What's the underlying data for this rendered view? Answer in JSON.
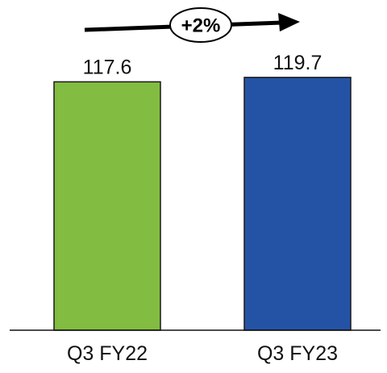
{
  "chart_data": {
    "type": "bar",
    "categories": [
      "Q3 FY22",
      "Q3 FY23"
    ],
    "values": [
      117.6,
      119.7
    ],
    "data_labels": [
      "117.6",
      "119.7"
    ],
    "colors": [
      "#82BC40",
      "#2453A5"
    ],
    "ylim": [
      0,
      125
    ],
    "grid": false,
    "legend": "none",
    "annotation": {
      "text": "+2%",
      "style": "arrow-with-oval-badge"
    }
  }
}
